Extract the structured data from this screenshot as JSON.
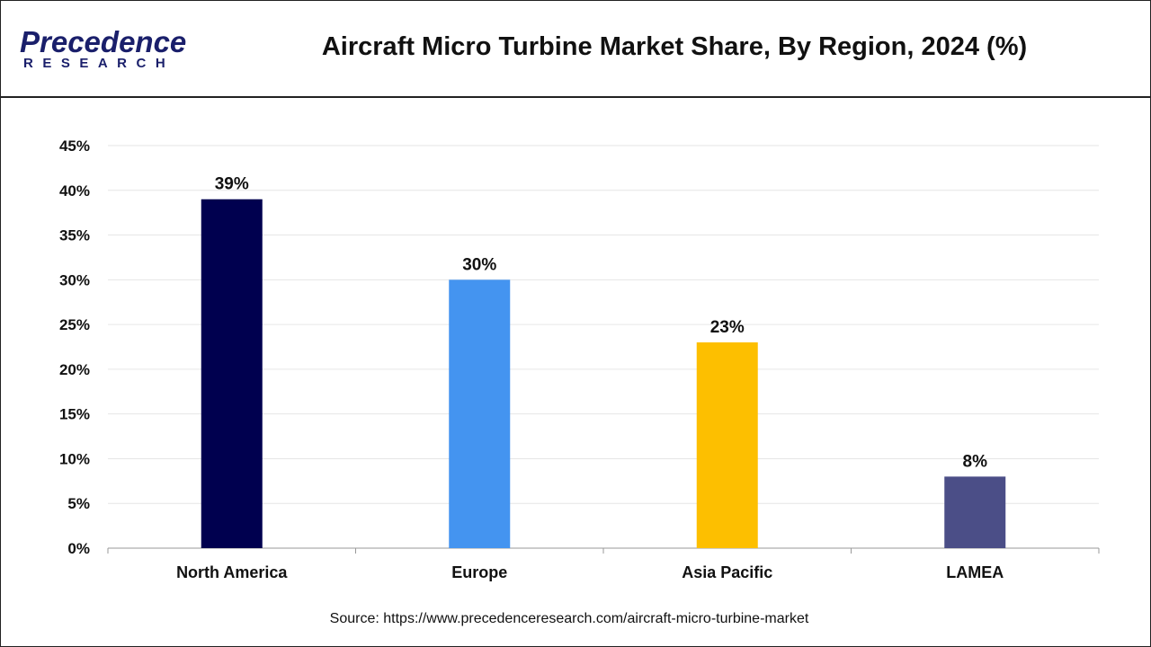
{
  "header": {
    "logo_text": "Precedence",
    "logo_subtext": "RESEARCH",
    "title": "Aircraft Micro Turbine Market Share, By Region, 2024 (%)"
  },
  "source": "Source: https://www.precedenceresearch.com/aircraft-micro-turbine-market",
  "chart_data": {
    "type": "bar",
    "title": "Aircraft Micro Turbine Market Share, By Region, 2024 (%)",
    "categories": [
      "North America",
      "Europe",
      "Asia Pacific",
      "LAMEA"
    ],
    "values": [
      39,
      30,
      23,
      8
    ],
    "data_labels": [
      "39%",
      "30%",
      "23%",
      "8%"
    ],
    "colors": [
      "#00004f",
      "#4494f0",
      "#fdbf00",
      "#4b4e87"
    ],
    "ylim": [
      0,
      45
    ],
    "yticks": [
      0,
      5,
      10,
      15,
      20,
      25,
      30,
      35,
      40,
      45
    ],
    "ytick_labels": [
      "0%",
      "5%",
      "10%",
      "15%",
      "20%",
      "25%",
      "30%",
      "35%",
      "40%",
      "45%"
    ],
    "grid": true,
    "legend": "none"
  }
}
